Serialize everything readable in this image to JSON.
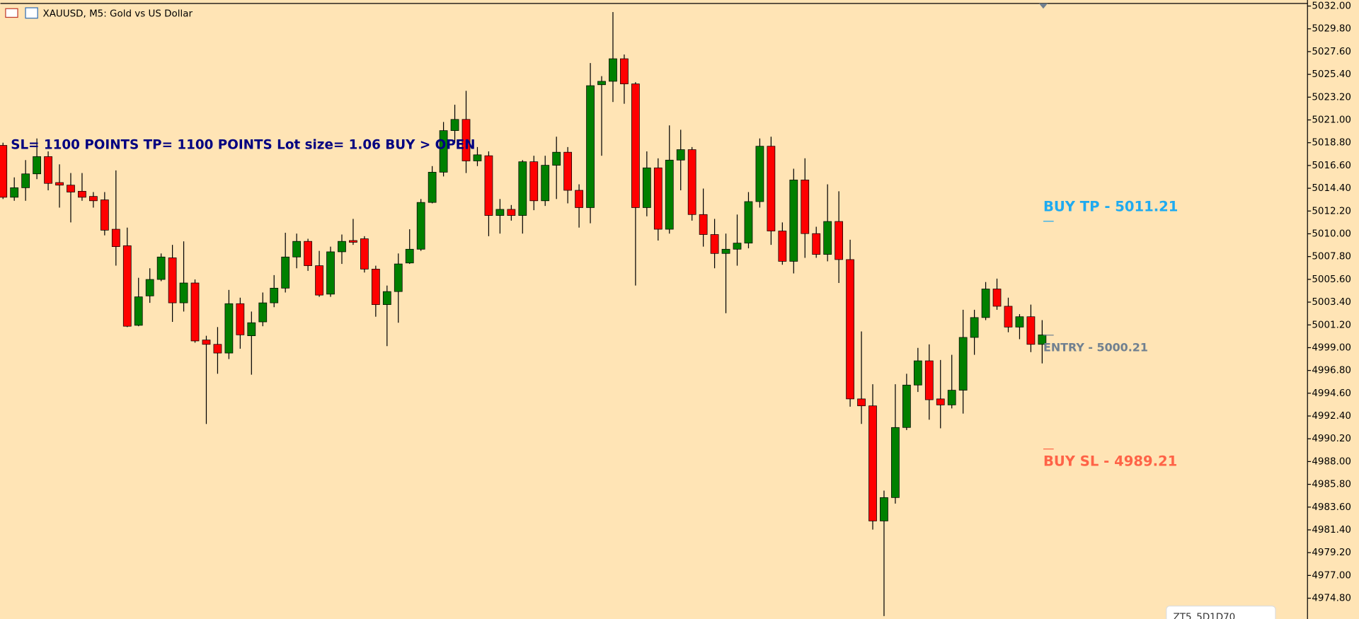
{
  "chart_data": {
    "type": "candlestick",
    "title": "XAUUSD, M5:  Gold vs US Dollar",
    "annotation": "SL= 1100 POINTS  TP= 1100 POINTS  Lot size= 1.06  BUY > OPEN",
    "badge": "ZT5_5D1D70",
    "up_color": "#008000",
    "down_color": "#ff0000",
    "background": "#ffe4b5",
    "ylim": [
      4972.79,
      5032.25
    ],
    "yticks": [
      {
        "value": 5032,
        "label": "5032.00"
      },
      {
        "value": 5029.8,
        "label": "5029.80"
      },
      {
        "value": 5027.6,
        "label": "5027.60"
      },
      {
        "value": 5025.4,
        "label": "5025.40"
      },
      {
        "value": 5023.2,
        "label": "5023.20"
      },
      {
        "value": 5021,
        "label": "5021.00"
      },
      {
        "value": 5018.8,
        "label": "5018.80"
      },
      {
        "value": 5016.6,
        "label": "5016.60"
      },
      {
        "value": 5014.4,
        "label": "5014.40"
      },
      {
        "value": 5012.2,
        "label": "5012.20"
      },
      {
        "value": 5010,
        "label": "5010.00"
      },
      {
        "value": 5007.8,
        "label": "5007.80"
      },
      {
        "value": 5005.6,
        "label": "5005.60"
      },
      {
        "value": 5003.4,
        "label": "5003.40"
      },
      {
        "value": 5001.2,
        "label": "5001.20"
      },
      {
        "value": 4999,
        "label": "4999.00"
      },
      {
        "value": 4996.8,
        "label": "4996.80"
      },
      {
        "value": 4994.6,
        "label": "4994.60"
      },
      {
        "value": 4992.4,
        "label": "4992.40"
      },
      {
        "value": 4990.2,
        "label": "4990.20"
      },
      {
        "value": 4988,
        "label": "4988.00"
      },
      {
        "value": 4985.8,
        "label": "4985.80"
      },
      {
        "value": 4983.6,
        "label": "4983.60"
      },
      {
        "value": 4981.4,
        "label": "4981.40"
      },
      {
        "value": 4979.2,
        "label": "4979.20"
      },
      {
        "value": 4977,
        "label": "4977.00"
      },
      {
        "value": 4974.8,
        "label": "4974.80"
      }
    ],
    "levels": [
      {
        "label": "BUY TP - 5011.21",
        "value": 5011.21,
        "color": "#1eaaf0",
        "label_position": "above"
      },
      {
        "label": "ENTRY - 5000.21",
        "value": 5000.21,
        "color": "#708090",
        "label_position": "below"
      },
      {
        "label": "BUY SL - 4989.21",
        "value": 4989.21,
        "color": "#ff6347",
        "label_position": "below"
      }
    ],
    "open": [
      5018.54,
      5013.53,
      5014.45,
      5015.79,
      5017.46,
      5014.95,
      5014.7,
      5014.11,
      5013.61,
      5013.28,
      5010.44,
      5008.85,
      5001.16,
      5004.0,
      5005.59,
      5007.68,
      5003.33,
      5005.25,
      4999.74,
      4999.32,
      4998.48,
      5003.25,
      5000.15,
      5001.49,
      5003.33,
      5004.75,
      5007.76,
      5009.27,
      5006.92,
      5004.17,
      5008.26,
      5009.35,
      5009.52,
      5006.59,
      5003.16,
      5004.42,
      5007.18,
      5008.51,
      5013.03,
      5015.95,
      5019.97,
      5021.05,
      5017.04,
      5017.54,
      5011.77,
      5012.36,
      5011.77,
      5016.96,
      5013.19,
      5016.62,
      5017.88,
      5014.2,
      5012.53,
      5024.4,
      5024.73,
      5026.91,
      5024.48,
      5012.53,
      5016.37,
      5010.44,
      5017.12,
      5018.13,
      5011.86,
      5009.93,
      5008.1,
      5008.51,
      5009.1,
      5013.11,
      5018.46,
      5010.27,
      5007.34,
      5015.2,
      5010.02,
      5008.01,
      5011.19,
      5007.51,
      4994.05,
      4993.38,
      4982.26,
      4984.52,
      4991.29,
      4995.39,
      4997.73,
      4994.05,
      4993.47,
      4994.89,
      4999.99,
      5001.91,
      5004.67,
      5003.0,
      5000.99,
      5001.99,
      4999.32
    ],
    "high": [
      5018.8,
      5015.45,
      5017.12,
      5019.21,
      5017.96,
      5016.71,
      5015.87,
      5015.87,
      5014.03,
      5014.03,
      5016.12,
      5010.6,
      5005.75,
      5006.67,
      5008.1,
      5008.93,
      5009.27,
      5005.59,
      5000.15,
      5000.99,
      5004.58,
      5003.83,
      5002.49,
      5004.33,
      5006.01,
      5010.1,
      5010.02,
      5009.52,
      5008.35,
      5008.76,
      5009.93,
      5011.44,
      5009.77,
      5006.92,
      5005.0,
      5008.1,
      5010.44,
      5013.36,
      5016.54,
      5020.8,
      5022.47,
      5023.81,
      5018.38,
      5017.96,
      5013.36,
      5012.78,
      5017.12,
      5017.54,
      5017.54,
      5019.38,
      5018.38,
      5014.78,
      5026.49,
      5025.23,
      5031.42,
      5027.32,
      5024.65,
      5017.96,
      5017.29,
      5020.47,
      5020.05,
      5018.38,
      5014.37,
      5011.44,
      5010.02,
      5011.86,
      5014.03,
      5019.21,
      5019.38,
      5011.1,
      5016.29,
      5017.29,
      5010.68,
      5014.78,
      5014.11,
      5009.43,
      5000.57,
      4995.47,
      4985.19,
      4995.47,
      4996.48,
      4998.98,
      4999.32,
      4997.81,
      4998.31,
      5002.66,
      5002.66,
      5005.34,
      5005.67,
      5003.83,
      5002.24,
      5003.16,
      5001.66
    ],
    "low": [
      5013.36,
      5013.19,
      5013.19,
      5015.28,
      5014.2,
      5012.53,
      5011.1,
      5013.19,
      5012.53,
      5009.85,
      5006.92,
      5000.99,
      5001.07,
      5003.33,
      5005.42,
      5001.49,
      5002.49,
      4999.48,
      4991.63,
      4996.48,
      4997.9,
      4998.9,
      4996.39,
      5001.07,
      5002.91,
      5004.33,
      5006.67,
      5006.42,
      5003.91,
      5003.91,
      5007.09,
      5008.93,
      5006.26,
      5001.99,
      4999.15,
      5001.41,
      5007.09,
      5008.35,
      5012.94,
      5015.54,
      5018.8,
      5015.87,
      5016.54,
      5009.77,
      5010.02,
      5011.27,
      5010.02,
      5012.28,
      5012.69,
      5013.36,
      5012.94,
      5010.6,
      5011.02,
      5017.54,
      5022.73,
      5022.56,
      5005.0,
      5011.69,
      5009.35,
      5010.02,
      5014.2,
      5011.27,
      5008.76,
      5006.67,
      5002.33,
      5006.92,
      5008.6,
      5012.53,
      5008.93,
      5007.01,
      5006.17,
      5007.68,
      5007.68,
      5007.34,
      5005.25,
      4993.3,
      4991.63,
      4981.43,
      4973.07,
      4983.94,
      4991.04,
      4994.72,
      4992.04,
      4991.21,
      4993.13,
      4992.63,
      4998.31,
      5001.66,
      5002.66,
      5000.49,
      4999.82,
      4998.57,
      4997.48
    ],
    "close": [
      5013.53,
      5014.45,
      5015.79,
      5017.46,
      5014.87,
      5014.7,
      5014.03,
      5013.53,
      5013.19,
      5010.35,
      5008.76,
      5001.07,
      5003.91,
      5005.59,
      5007.76,
      5003.33,
      5005.25,
      4999.65,
      4999.32,
      4998.48,
      5003.25,
      5000.24,
      5001.41,
      5003.33,
      5004.75,
      5007.76,
      5009.27,
      5006.92,
      5004.08,
      5008.26,
      5009.27,
      5009.18,
      5006.59,
      5003.16,
      5004.42,
      5007.09,
      5008.51,
      5013.03,
      5015.95,
      5019.97,
      5021.05,
      5017.04,
      5017.63,
      5011.77,
      5012.36,
      5011.77,
      5016.96,
      5013.19,
      5016.62,
      5017.88,
      5014.2,
      5012.53,
      5024.31,
      5024.73,
      5026.91,
      5024.48,
      5012.53,
      5016.37,
      5010.44,
      5017.12,
      5018.13,
      5011.86,
      5009.93,
      5008.1,
      5008.51,
      5009.1,
      5013.11,
      5018.46,
      5010.27,
      5007.34,
      5015.2,
      5010.02,
      5008.01,
      5011.19,
      5007.51,
      4994.05,
      4993.38,
      4982.26,
      4984.52,
      4991.29,
      4995.39,
      4997.73,
      4993.97,
      4993.47,
      4994.89,
      4999.99,
      5001.91,
      5004.67,
      5003.0,
      5000.99,
      5001.99,
      4999.32,
      5000.24
    ]
  }
}
